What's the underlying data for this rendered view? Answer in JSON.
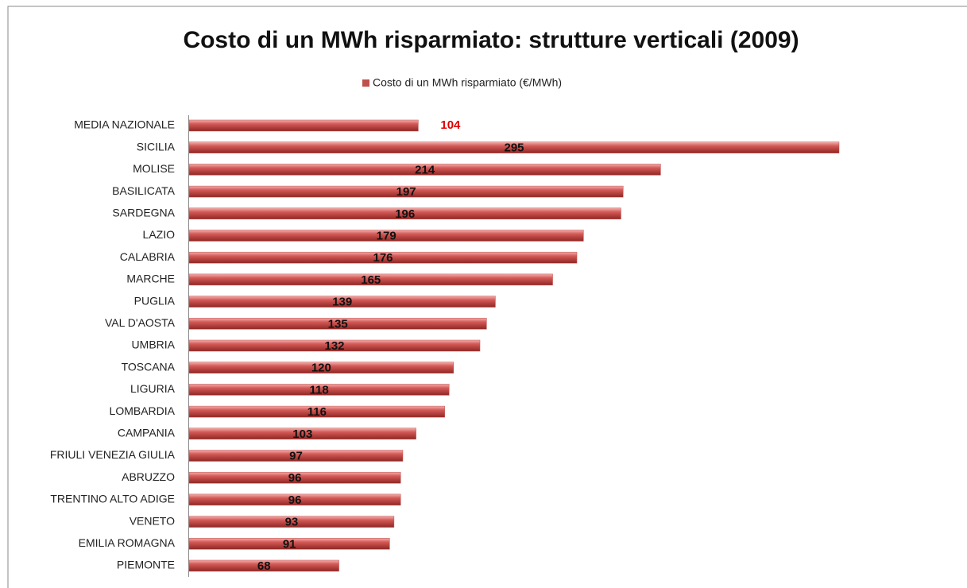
{
  "chart_data": {
    "type": "bar",
    "orientation": "horizontal",
    "title": "Costo di un MWh risparmiato: strutture verticali (2009)",
    "categories": [
      "MEDIA NAZIONALE",
      "SICILIA",
      "MOLISE",
      "BASILICATA",
      "SARDEGNA",
      "LAZIO",
      "CALABRIA",
      "MARCHE",
      "PUGLIA",
      "VAL D'AOSTA",
      "UMBRIA",
      "TOSCANA",
      "LIGURIA",
      "LOMBARDIA",
      "CAMPANIA",
      "FRIULI VENEZIA GIULIA",
      "ABRUZZO",
      "TRENTINO ALTO ADIGE",
      "VENETO",
      "EMILIA ROMAGNA",
      "PIEMONTE"
    ],
    "series": [
      {
        "name": "Costo di un MWh risparmiato (€/MWh)",
        "color": "#c0504d",
        "values": [
          104,
          295,
          214,
          197,
          196,
          179,
          176,
          165,
          139,
          135,
          132,
          120,
          118,
          116,
          103,
          97,
          96,
          96,
          93,
          91,
          68
        ]
      }
    ],
    "legend": "top"
  }
}
